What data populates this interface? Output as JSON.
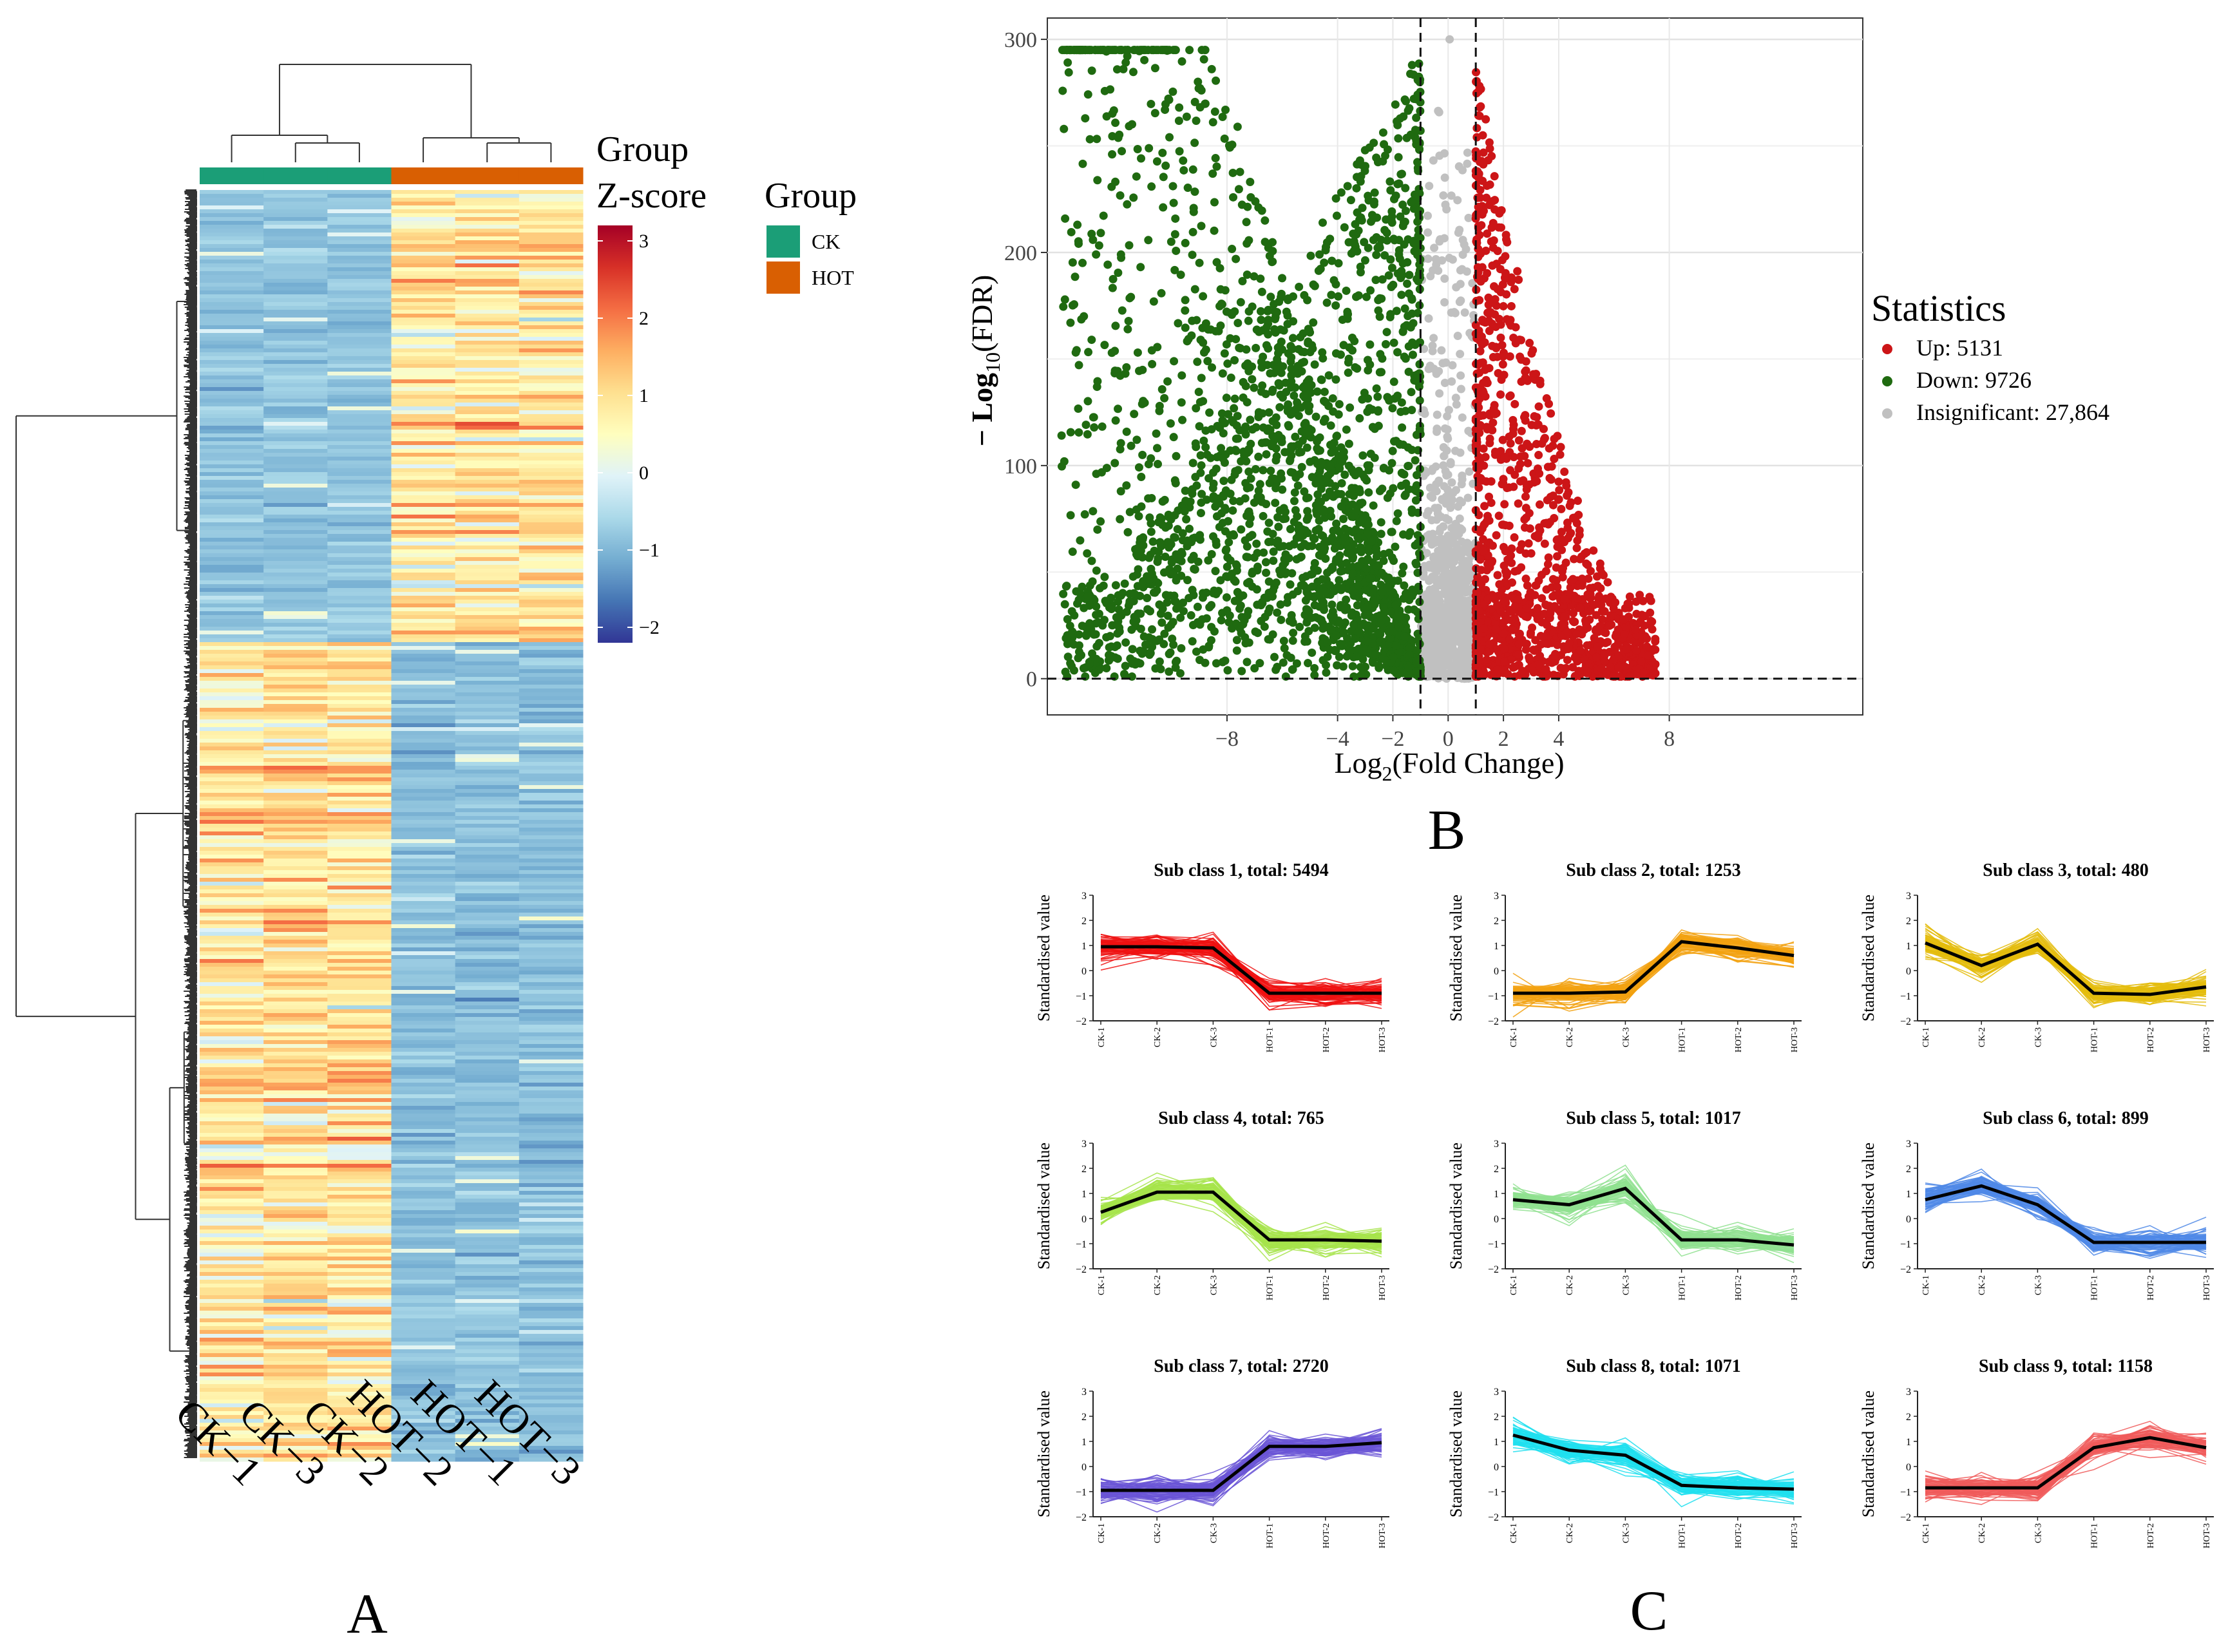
{
  "colors": {
    "ck": "#1b9e77",
    "hot": "#d95f02",
    "up": "#cc1517",
    "down": "#1f6a10",
    "insig": "#c0c0c0",
    "zscale": [
      "#313695",
      "#4575b4",
      "#74add1",
      "#abd9e9",
      "#e0f3f8",
      "#fffebe",
      "#fee090",
      "#fdae61",
      "#f46d43",
      "#d73027",
      "#a50026"
    ],
    "subclasses": [
      "#ee1010",
      "#f2a10f",
      "#e4bc0c",
      "#a6e44a",
      "#8fe08f",
      "#4f88e6",
      "#6a55d6",
      "#1fdfee",
      "#f05a5a"
    ]
  },
  "panel_labels": {
    "a": "A",
    "b": "B",
    "c": "C"
  },
  "heatmap": {
    "columns": [
      "CK−1",
      "CK−3",
      "CK−2",
      "HOT−2",
      "HOT−1",
      "HOT−3"
    ],
    "column_groups": [
      "CK",
      "CK",
      "CK",
      "HOT",
      "HOT",
      "HOT"
    ],
    "legend_group_title": "Group",
    "legend_zscore_title": "Z-score",
    "legend_group_title2": "Group",
    "zscore_ticks": [
      "3",
      "2",
      "1",
      "0",
      "−1",
      "−2"
    ],
    "zscore_values": [
      3,
      2,
      1,
      0,
      -1,
      -2
    ],
    "zscore_range": [
      -2.2,
      3.2
    ],
    "groups": [
      "CK",
      "HOT"
    ],
    "cluster_split_fraction": 0.354
  },
  "chart_data": [
    {
      "type": "scatter",
      "name": "volcano",
      "title": "",
      "xlabel": "Log₂(Fold Change)",
      "ylabel": "− Log₁₀(FDR)",
      "xlabel_main": "Log",
      "xlabel_sub": "2",
      "xlabel_tail": "(Fold Change)",
      "ylabel_main": "− Log",
      "ylabel_sub": "10",
      "ylabel_tail": "(FDR)",
      "xlim": [
        -14.5,
        15
      ],
      "ylim": [
        -17,
        310
      ],
      "xticks": [
        -8,
        -4,
        -2,
        0,
        2,
        4,
        8
      ],
      "xtick_labels": [
        "−8",
        "−4",
        "−2",
        "0",
        "2",
        "4",
        "8"
      ],
      "yticks": [
        0,
        100,
        200,
        300
      ],
      "ytick_labels": [
        "0",
        "100",
        "200",
        "300"
      ],
      "fc_threshold": [
        -1,
        1
      ],
      "fdr_threshold_y": 0,
      "legend_title": "Statistics",
      "legend": [
        {
          "label": "Up: 5131",
          "key": "up"
        },
        {
          "label": "Down: 9726",
          "key": "down"
        },
        {
          "label": "Insignificant: 27,864",
          "key": "insig"
        }
      ],
      "counts": {
        "up": 5131,
        "down": 9726,
        "insignificant": 27864
      }
    },
    {
      "type": "line",
      "name": "expression-clusters",
      "x": [
        "CK-1",
        "CK-2",
        "CK-3",
        "HOT-1",
        "HOT-2",
        "HOT-3"
      ],
      "ylabel": "Standardised value",
      "yticks": [
        3,
        2,
        1,
        0,
        -1,
        -2
      ],
      "ytick_labels": [
        "3",
        "2",
        "1",
        "0",
        "−1",
        "−2"
      ],
      "ylim": [
        -2,
        3
      ],
      "panels": [
        {
          "title": "Sub class 1, total: 5494",
          "mean": [
            0.95,
            0.95,
            0.9,
            -0.9,
            -0.9,
            -0.9
          ]
        },
        {
          "title": "Sub class 2, total: 1253",
          "mean": [
            -0.9,
            -0.9,
            -0.85,
            1.15,
            0.9,
            0.6
          ]
        },
        {
          "title": "Sub class 3, total: 480",
          "mean": [
            1.1,
            0.2,
            1.05,
            -0.9,
            -0.95,
            -0.65
          ]
        },
        {
          "title": "Sub class 4, total: 765",
          "mean": [
            0.25,
            1.05,
            1.05,
            -0.85,
            -0.85,
            -0.9
          ]
        },
        {
          "title": "Sub class 5, total: 1017",
          "mean": [
            0.75,
            0.55,
            1.2,
            -0.85,
            -0.85,
            -1.05
          ]
        },
        {
          "title": "Sub class 6, total: 899",
          "mean": [
            0.75,
            1.3,
            0.55,
            -0.95,
            -0.95,
            -0.95
          ]
        },
        {
          "title": "Sub class 7, total: 2720",
          "mean": [
            -0.95,
            -0.95,
            -0.95,
            0.8,
            0.8,
            0.95
          ]
        },
        {
          "title": "Sub class 8, total: 1071",
          "mean": [
            1.25,
            0.65,
            0.45,
            -0.75,
            -0.85,
            -0.9
          ]
        },
        {
          "title": "Sub class 9, total: 1158",
          "mean": [
            -0.85,
            -0.85,
            -0.85,
            0.75,
            1.15,
            0.75
          ]
        }
      ]
    }
  ]
}
